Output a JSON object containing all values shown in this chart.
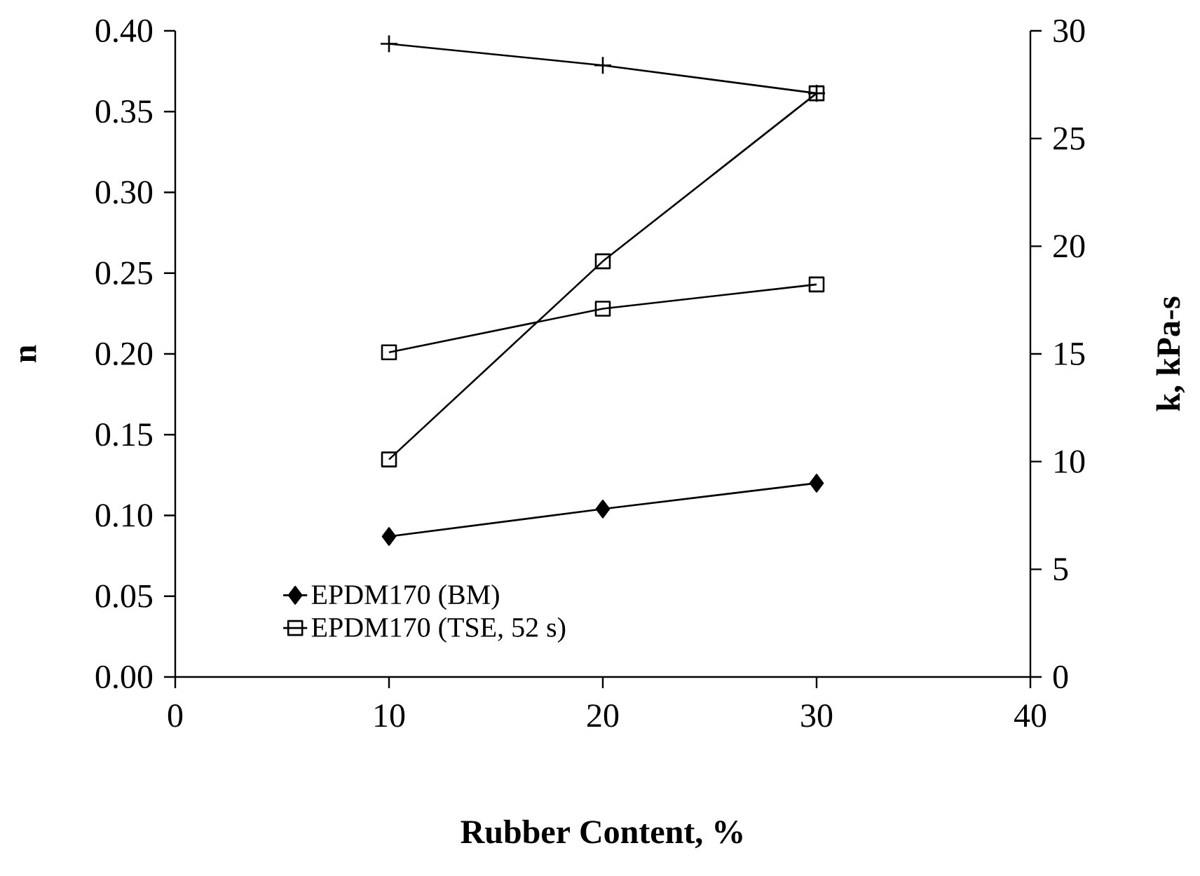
{
  "chart_data": {
    "type": "line",
    "xlabel": "Rubber Content, %",
    "ylabel": "n",
    "y2label": "k, kPa-s",
    "xlim": [
      0,
      40
    ],
    "xticks": [
      0,
      10,
      20,
      30,
      40
    ],
    "ylim": [
      0,
      0.4
    ],
    "yticks": [
      {
        "value": 0,
        "label": "0.00"
      },
      {
        "value": 0.05,
        "label": "0.05"
      },
      {
        "value": 0.1,
        "label": "0.10"
      },
      {
        "value": 0.15,
        "label": "0.15"
      },
      {
        "value": 0.2,
        "label": "0.20"
      },
      {
        "value": 0.25,
        "label": "0.25"
      },
      {
        "value": 0.3,
        "label": "0.30"
      },
      {
        "value": 0.35,
        "label": "0.35"
      },
      {
        "value": 0.4,
        "label": "0.40"
      }
    ],
    "y2lim": [
      0,
      30
    ],
    "y2ticks": [
      0,
      5,
      10,
      15,
      20,
      25,
      30
    ],
    "legend": "bottom left",
    "series": [
      {
        "name": "EPDM170 (BM)",
        "color": "#000000",
        "marker": "diamond",
        "x": [
          10,
          20,
          30
        ],
        "values": [
          0.087,
          0.104,
          0.12
        ]
      },
      {
        "name": "EPDM170 (TSE, 52 s)",
        "color": "#000000",
        "marker": "square",
        "x": [
          10,
          20,
          30
        ],
        "values": [
          0.201,
          0.228,
          0.243
        ]
      },
      {
        "color": "#000000",
        "marker": "cross",
        "axis": "y2",
        "x": [
          10,
          20,
          30
        ],
        "values": [
          29.4,
          28.4,
          27.1
        ]
      },
      {
        "color": "#000000",
        "marker": "square",
        "axis": "y2",
        "x": [
          10,
          20,
          30
        ],
        "values": [
          10.1,
          19.3,
          27.1
        ]
      }
    ]
  }
}
